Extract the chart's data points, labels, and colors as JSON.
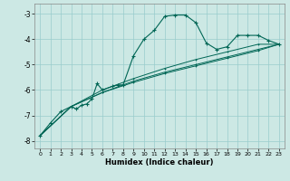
{
  "xlabel": "Humidex (Indice chaleur)",
  "bg_color": "#cce8e4",
  "grid_color": "#99cccc",
  "line_color": "#006655",
  "xlim": [
    -0.5,
    23.5
  ],
  "ylim": [
    -8.3,
    -2.6
  ],
  "yticks": [
    -8,
    -7,
    -6,
    -5,
    -4,
    -3
  ],
  "xticks": [
    0,
    1,
    2,
    3,
    4,
    5,
    6,
    7,
    8,
    9,
    10,
    11,
    12,
    13,
    14,
    15,
    16,
    17,
    18,
    19,
    20,
    21,
    22,
    23
  ],
  "series1": [
    [
      0,
      -7.8
    ],
    [
      1,
      -7.3
    ],
    [
      2,
      -6.85
    ],
    [
      3,
      -6.65
    ],
    [
      3.5,
      -6.75
    ],
    [
      4,
      -6.6
    ],
    [
      4.5,
      -6.55
    ],
    [
      5,
      -6.35
    ],
    [
      5.5,
      -5.75
    ],
    [
      6,
      -6.0
    ],
    [
      7,
      -5.85
    ],
    [
      7.5,
      -5.8
    ],
    [
      8,
      -5.8
    ],
    [
      9,
      -4.65
    ],
    [
      10,
      -4.0
    ],
    [
      11,
      -3.65
    ],
    [
      12,
      -3.1
    ],
    [
      13,
      -3.05
    ],
    [
      14,
      -3.05
    ],
    [
      15,
      -3.35
    ],
    [
      16,
      -4.15
    ],
    [
      17,
      -4.4
    ],
    [
      18,
      -4.3
    ],
    [
      19,
      -3.85
    ],
    [
      20,
      -3.85
    ],
    [
      21,
      -3.85
    ],
    [
      22,
      -4.05
    ],
    [
      23,
      -4.2
    ]
  ],
  "series2": [
    [
      0,
      -7.8
    ],
    [
      3,
      -6.65
    ],
    [
      6,
      -6.1
    ],
    [
      9,
      -5.7
    ],
    [
      12,
      -5.35
    ],
    [
      15,
      -5.05
    ],
    [
      18,
      -4.75
    ],
    [
      21,
      -4.45
    ],
    [
      23,
      -4.2
    ]
  ],
  "series3": [
    [
      0,
      -7.8
    ],
    [
      3,
      -6.65
    ],
    [
      6,
      -6.1
    ],
    [
      9,
      -5.65
    ],
    [
      12,
      -5.3
    ],
    [
      15,
      -5.0
    ],
    [
      18,
      -4.7
    ],
    [
      21,
      -4.4
    ],
    [
      23,
      -4.2
    ]
  ],
  "series4": [
    [
      0,
      -7.8
    ],
    [
      3,
      -6.65
    ],
    [
      6,
      -6.0
    ],
    [
      9,
      -5.55
    ],
    [
      12,
      -5.15
    ],
    [
      15,
      -4.8
    ],
    [
      18,
      -4.5
    ],
    [
      21,
      -4.2
    ],
    [
      23,
      -4.2
    ]
  ]
}
